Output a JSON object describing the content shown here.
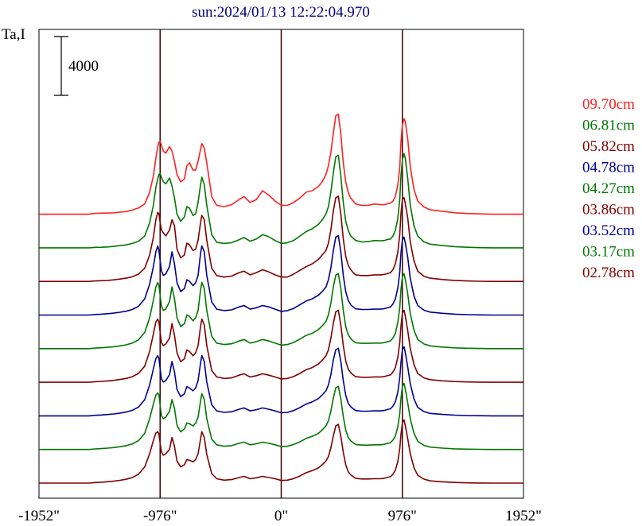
{
  "chart_data": {
    "type": "line",
    "title": "sun:2024/01/13 12:22:04.970",
    "ylabel": "Ta,I",
    "scale_bar_label": "4000",
    "scale_bar_value": 4000,
    "xlim": [
      -1952,
      1952
    ],
    "x_ticks": [
      -1952,
      -976,
      0,
      976,
      1952
    ],
    "x_tick_labels": [
      "-1952\"",
      "-976\"",
      "0\"",
      "976\"",
      "1952\""
    ],
    "vertical_lines": [
      -976,
      0,
      976
    ],
    "grid": false,
    "legend_position": "right",
    "x": [
      -1952,
      -1900,
      -1850,
      -1800,
      -1750,
      -1700,
      -1650,
      -1600,
      -1550,
      -1500,
      -1450,
      -1400,
      -1350,
      -1300,
      -1250,
      -1200,
      -1150,
      -1100,
      -1060,
      -1030,
      -1010,
      -995,
      -985,
      -976,
      -965,
      -950,
      -930,
      -900,
      -880,
      -860,
      -840,
      -810,
      -780,
      -760,
      -740,
      -710,
      -690,
      -670,
      -650,
      -640,
      -620,
      -600,
      -560,
      -520,
      -460,
      -400,
      -340,
      -300,
      -250,
      -200,
      -150,
      -100,
      -50,
      0,
      50,
      100,
      150,
      200,
      250,
      300,
      330,
      360,
      380,
      400,
      420,
      440,
      460,
      480,
      500,
      520,
      540,
      560,
      580,
      600,
      650,
      700,
      750,
      800,
      830,
      850,
      880,
      900,
      920,
      940,
      955,
      965,
      976,
      990,
      1000,
      1020,
      1040,
      1070,
      1100,
      1150,
      1200,
      1300,
      1400,
      1500,
      1600,
      1700,
      1800,
      1900,
      1952
    ],
    "series": [
      {
        "name": "09.70cm",
        "color": "#ff2020",
        "values": [
          0,
          0,
          0,
          0,
          0,
          0,
          0,
          0,
          0,
          60,
          70,
          80,
          90,
          140,
          180,
          280,
          420,
          700,
          1500,
          2600,
          3800,
          4600,
          4900,
          4950,
          4700,
          4300,
          4150,
          4600,
          4300,
          3600,
          2700,
          2200,
          2400,
          3300,
          3500,
          3000,
          3000,
          3600,
          4400,
          4800,
          4500,
          3500,
          1200,
          600,
          520,
          650,
          1000,
          1200,
          800,
          1000,
          1600,
          1300,
          900,
          600,
          600,
          800,
          1100,
          1500,
          1600,
          1900,
          2200,
          2700,
          3300,
          4200,
          5500,
          6700,
          6800,
          5500,
          3500,
          2200,
          1500,
          1100,
          900,
          700,
          600,
          600,
          700,
          650,
          650,
          700,
          750,
          900,
          1200,
          2000,
          3200,
          4900,
          6100,
          6500,
          6300,
          5100,
          3200,
          1700,
          900,
          500,
          300,
          200,
          100,
          50,
          20,
          0,
          0,
          0,
          0
        ]
      },
      {
        "name": "06.81cm",
        "color": "#007800",
        "values": [
          0,
          0,
          0,
          0,
          0,
          0,
          0,
          0,
          0,
          30,
          40,
          60,
          100,
          150,
          200,
          300,
          450,
          800,
          1700,
          2900,
          4100,
          4700,
          5000,
          5050,
          4800,
          4500,
          4350,
          4750,
          4200,
          3400,
          2300,
          1800,
          2100,
          2800,
          2700,
          2200,
          2300,
          3100,
          4300,
          4800,
          4300,
          2900,
          900,
          380,
          300,
          350,
          550,
          700,
          450,
          600,
          900,
          750,
          500,
          300,
          350,
          500,
          800,
          1100,
          1300,
          1600,
          1900,
          2300,
          2800,
          3800,
          5100,
          6200,
          6300,
          4900,
          3100,
          1800,
          1200,
          800,
          650,
          500,
          400,
          420,
          500,
          480,
          500,
          550,
          600,
          800,
          1200,
          2000,
          3300,
          4900,
          6000,
          6400,
          6100,
          4700,
          2900,
          1500,
          800,
          400,
          250,
          150,
          80,
          40,
          10,
          0,
          0,
          0,
          0
        ]
      },
      {
        "name": "05.82cm",
        "color": "#800000",
        "values": [
          0,
          0,
          0,
          0,
          0,
          0,
          0,
          0,
          0,
          30,
          50,
          70,
          110,
          160,
          220,
          320,
          500,
          900,
          1800,
          3000,
          4200,
          4700,
          4600,
          4000,
          3500,
          3300,
          3100,
          3500,
          4200,
          3800,
          2200,
          1600,
          1800,
          2600,
          2500,
          2100,
          2200,
          2800,
          4000,
          4500,
          4200,
          2800,
          900,
          400,
          300,
          360,
          600,
          700,
          450,
          600,
          800,
          650,
          450,
          300,
          300,
          500,
          750,
          1000,
          1200,
          1500,
          1800,
          2100,
          2600,
          3500,
          4800,
          5700,
          5800,
          4600,
          2900,
          1700,
          1100,
          800,
          600,
          450,
          400,
          400,
          450,
          450,
          480,
          520,
          600,
          800,
          1200,
          2000,
          3200,
          4600,
          5600,
          5700,
          5300,
          4300,
          2700,
          1400,
          700,
          350,
          220,
          130,
          70,
          30,
          10,
          0,
          0,
          0,
          0
        ]
      },
      {
        "name": "04.78cm",
        "color": "#000090",
        "values": [
          0,
          0,
          0,
          0,
          0,
          0,
          0,
          0,
          0,
          40,
          60,
          90,
          130,
          190,
          260,
          380,
          600,
          1100,
          2100,
          3300,
          4300,
          4700,
          4400,
          3700,
          3000,
          2700,
          2800,
          3300,
          4300,
          3500,
          2200,
          1600,
          1800,
          2400,
          2300,
          2000,
          2200,
          2700,
          4200,
          4700,
          4300,
          2700,
          900,
          400,
          300,
          350,
          550,
          650,
          400,
          500,
          650,
          550,
          400,
          250,
          300,
          450,
          700,
          950,
          1100,
          1350,
          1600,
          1900,
          2400,
          3200,
          4400,
          5300,
          5400,
          4300,
          2700,
          1600,
          1000,
          700,
          550,
          420,
          380,
          380,
          400,
          400,
          430,
          480,
          550,
          750,
          1100,
          1850,
          2900,
          4200,
          5100,
          5300,
          4900,
          3900,
          2500,
          1300,
          650,
          330,
          200,
          120,
          60,
          25,
          10,
          0,
          0,
          0,
          0
        ]
      },
      {
        "name": "04.27cm",
        "color": "#007800",
        "values": [
          0,
          0,
          0,
          0,
          0,
          0,
          0,
          0,
          0,
          40,
          60,
          90,
          130,
          190,
          260,
          380,
          600,
          1100,
          2100,
          3300,
          4200,
          4500,
          4300,
          3600,
          2900,
          2600,
          2700,
          3200,
          4200,
          3400,
          2100,
          1500,
          1700,
          2300,
          2200,
          1900,
          2100,
          2600,
          4000,
          4500,
          4100,
          2600,
          850,
          380,
          280,
          330,
          520,
          620,
          380,
          480,
          620,
          520,
          380,
          240,
          280,
          420,
          650,
          900,
          1050,
          1300,
          1550,
          1850,
          2300,
          3100,
          4200,
          5000,
          5100,
          4100,
          2600,
          1500,
          950,
          680,
          520,
          400,
          360,
          360,
          380,
          380,
          410,
          460,
          530,
          720,
          1050,
          1800,
          2800,
          4000,
          4900,
          5100,
          4700,
          3700,
          2400,
          1250,
          620,
          320,
          190,
          110,
          55,
          25,
          10,
          0,
          0,
          0,
          0
        ]
      },
      {
        "name": "03.86cm",
        "color": "#800000",
        "values": [
          0,
          0,
          0,
          0,
          0,
          0,
          0,
          0,
          0,
          40,
          60,
          90,
          130,
          190,
          260,
          380,
          600,
          1100,
          2100,
          3300,
          4100,
          4300,
          4100,
          3400,
          2700,
          2500,
          2600,
          3000,
          4000,
          3200,
          2000,
          1400,
          1600,
          2200,
          2100,
          1800,
          2000,
          2500,
          3800,
          4300,
          3900,
          2500,
          800,
          360,
          260,
          300,
          480,
          580,
          360,
          450,
          580,
          480,
          360,
          220,
          260,
          390,
          600,
          850,
          1000,
          1250,
          1500,
          1800,
          2200,
          3000,
          4000,
          4800,
          4900,
          3900,
          2500,
          1450,
          900,
          650,
          500,
          380,
          340,
          340,
          360,
          360,
          390,
          440,
          500,
          690,
          1000,
          1700,
          2700,
          3800,
          4700,
          4900,
          4500,
          3500,
          2300,
          1200,
          600,
          300,
          180,
          100,
          50,
          20,
          10,
          0,
          0,
          0,
          0
        ]
      },
      {
        "name": "03.52cm",
        "color": "#000090",
        "values": [
          0,
          0,
          0,
          0,
          0,
          0,
          0,
          0,
          0,
          40,
          60,
          90,
          130,
          190,
          260,
          380,
          600,
          1100,
          2100,
          3200,
          3900,
          4100,
          3900,
          3200,
          2500,
          2300,
          2400,
          2800,
          3700,
          3000,
          1800,
          1300,
          1500,
          2000,
          1900,
          1700,
          1900,
          2400,
          3600,
          4100,
          3700,
          2300,
          750,
          340,
          240,
          280,
          450,
          540,
          340,
          420,
          540,
          450,
          340,
          210,
          240,
          360,
          560,
          800,
          950,
          1180,
          1420,
          1700,
          2100,
          2800,
          3800,
          4500,
          4600,
          3700,
          2400,
          1400,
          860,
          620,
          480,
          360,
          320,
          320,
          340,
          340,
          370,
          420,
          480,
          660,
          960,
          1620,
          2600,
          3600,
          4500,
          4700,
          4300,
          3300,
          2200,
          1150,
          580,
          290,
          170,
          95,
          48,
          20,
          10,
          0,
          0,
          0,
          0
        ]
      },
      {
        "name": "03.17cm",
        "color": "#007800",
        "values": [
          0,
          0,
          0,
          0,
          0,
          0,
          0,
          0,
          0,
          40,
          60,
          90,
          130,
          190,
          260,
          380,
          600,
          1100,
          2100,
          3100,
          3700,
          3850,
          3700,
          3000,
          2300,
          2100,
          2200,
          2600,
          3400,
          2800,
          1650,
          1200,
          1400,
          1800,
          1750,
          1600,
          1800,
          2200,
          3300,
          3800,
          3400,
          2100,
          700,
          320,
          220,
          260,
          420,
          500,
          320,
          390,
          500,
          420,
          320,
          200,
          220,
          340,
          520,
          750,
          900,
          1100,
          1330,
          1600,
          1950,
          2600,
          3500,
          4200,
          4300,
          3450,
          2250,
          1320,
          820,
          590,
          460,
          340,
          300,
          300,
          320,
          320,
          350,
          400,
          460,
          630,
          920,
          1550,
          2450,
          3450,
          4300,
          4500,
          4100,
          3150,
          2100,
          1100,
          560,
          280,
          160,
          90,
          45,
          20,
          10,
          0,
          0,
          0,
          0
        ]
      },
      {
        "name": "02.78cm",
        "color": "#800000",
        "values": [
          0,
          0,
          0,
          0,
          0,
          0,
          0,
          0,
          0,
          40,
          60,
          90,
          130,
          190,
          260,
          380,
          600,
          1100,
          2000,
          2900,
          3400,
          3500,
          3350,
          2700,
          2100,
          1900,
          2000,
          2300,
          3100,
          2500,
          1500,
          1100,
          1250,
          1600,
          1550,
          1450,
          1600,
          2000,
          3000,
          3500,
          3100,
          1950,
          650,
          300,
          200,
          240,
          380,
          460,
          300,
          360,
          460,
          380,
          300,
          180,
          200,
          310,
          480,
          700,
          850,
          1030,
          1250,
          1500,
          1800,
          2400,
          3200,
          3900,
          4000,
          3200,
          2100,
          1250,
          780,
          560,
          440,
          320,
          280,
          280,
          300,
          300,
          330,
          380,
          440,
          600,
          880,
          1480,
          2350,
          3300,
          4100,
          4300,
          3900,
          3000,
          2000,
          1050,
          530,
          270,
          150,
          85,
          42,
          18,
          8,
          0,
          0,
          0,
          0
        ]
      }
    ]
  }
}
